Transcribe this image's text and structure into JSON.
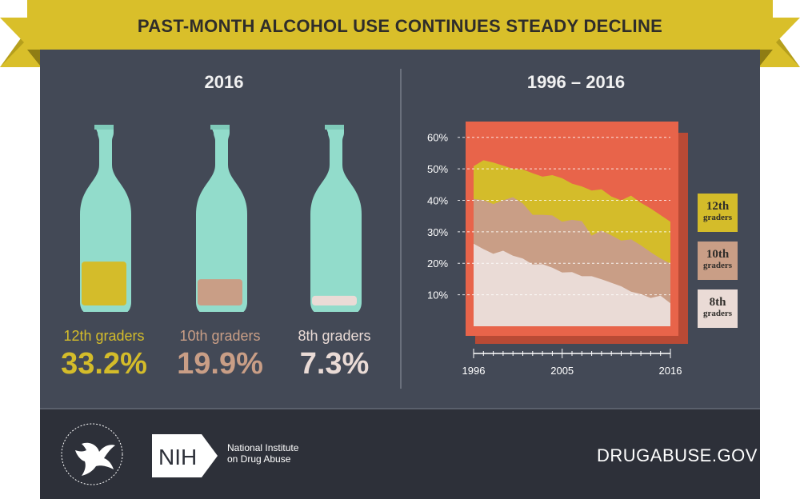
{
  "banner": {
    "title": "PAST-MONTH ALCOHOL USE CONTINUES STEADY DECLINE",
    "color": "#d9bf2a"
  },
  "left": {
    "title": "2016",
    "bottles": [
      {
        "label": "12th graders",
        "value": "33.2%",
        "fill": 0.332,
        "color": "#d4bc2a"
      },
      {
        "label": "10th graders",
        "value": "19.9%",
        "fill": 0.199,
        "color": "#c99e86"
      },
      {
        "label": "8th graders",
        "value": "7.3%",
        "fill": 0.073,
        "color": "#eadbd6"
      }
    ]
  },
  "right": {
    "title": "1996 – 2016"
  },
  "chart_data": {
    "type": "area",
    "title": "1996 – 2016",
    "x": [
      1996,
      1997,
      1998,
      1999,
      2000,
      2001,
      2002,
      2003,
      2004,
      2005,
      2006,
      2007,
      2008,
      2009,
      2010,
      2011,
      2012,
      2013,
      2014,
      2015,
      2016
    ],
    "x_tick_labels": [
      "1996",
      "2005",
      "2016"
    ],
    "y_tick_labels": [
      "60%",
      "50%",
      "40%",
      "30%",
      "20%",
      "10%"
    ],
    "ylim": [
      0,
      65
    ],
    "grid": true,
    "legend_position": "right",
    "series": [
      {
        "name": "12th graders",
        "color": "#d4bc2a",
        "values": [
          50.8,
          52.7,
          52.0,
          51.0,
          50.0,
          49.8,
          48.6,
          47.5,
          48.0,
          47.0,
          45.3,
          44.4,
          43.1,
          43.5,
          41.2,
          40.0,
          41.5,
          39.2,
          37.4,
          35.3,
          33.2
        ]
      },
      {
        "name": "10th graders",
        "color": "#c99e86",
        "values": [
          40.4,
          40.1,
          38.8,
          40.0,
          41.0,
          39.0,
          35.4,
          35.4,
          35.2,
          33.2,
          33.8,
          33.4,
          28.8,
          30.4,
          28.9,
          27.2,
          27.6,
          25.7,
          23.5,
          21.5,
          19.9
        ]
      },
      {
        "name": "8th graders",
        "color": "#eadbd6",
        "values": [
          26.2,
          24.5,
          23.0,
          24.0,
          22.4,
          21.5,
          19.6,
          19.7,
          18.6,
          17.1,
          17.2,
          15.9,
          15.9,
          14.9,
          13.8,
          12.7,
          11.0,
          10.2,
          9.0,
          9.7,
          7.3
        ]
      }
    ]
  },
  "legend": [
    {
      "line1": "12th",
      "line2": "graders",
      "color": "#d4bc2a"
    },
    {
      "line1": "10th",
      "line2": "graders",
      "color": "#c99e86"
    },
    {
      "line1": "8th",
      "line2": "graders",
      "color": "#eadbd6"
    }
  ],
  "footer": {
    "nih_logo": "NIH",
    "nih_name_line1": "National Institute",
    "nih_name_line2": "on Drug Abuse",
    "site": "DRUGABUSE.GOV",
    "hhs_icon": "hhs-eagle-seal-icon"
  },
  "colors": {
    "panel": "#434956",
    "footer": "#2d3039",
    "chart_bg": "#e8644a",
    "chart_shadow": "#b94a35",
    "bottle_glass": "#92dccb"
  }
}
